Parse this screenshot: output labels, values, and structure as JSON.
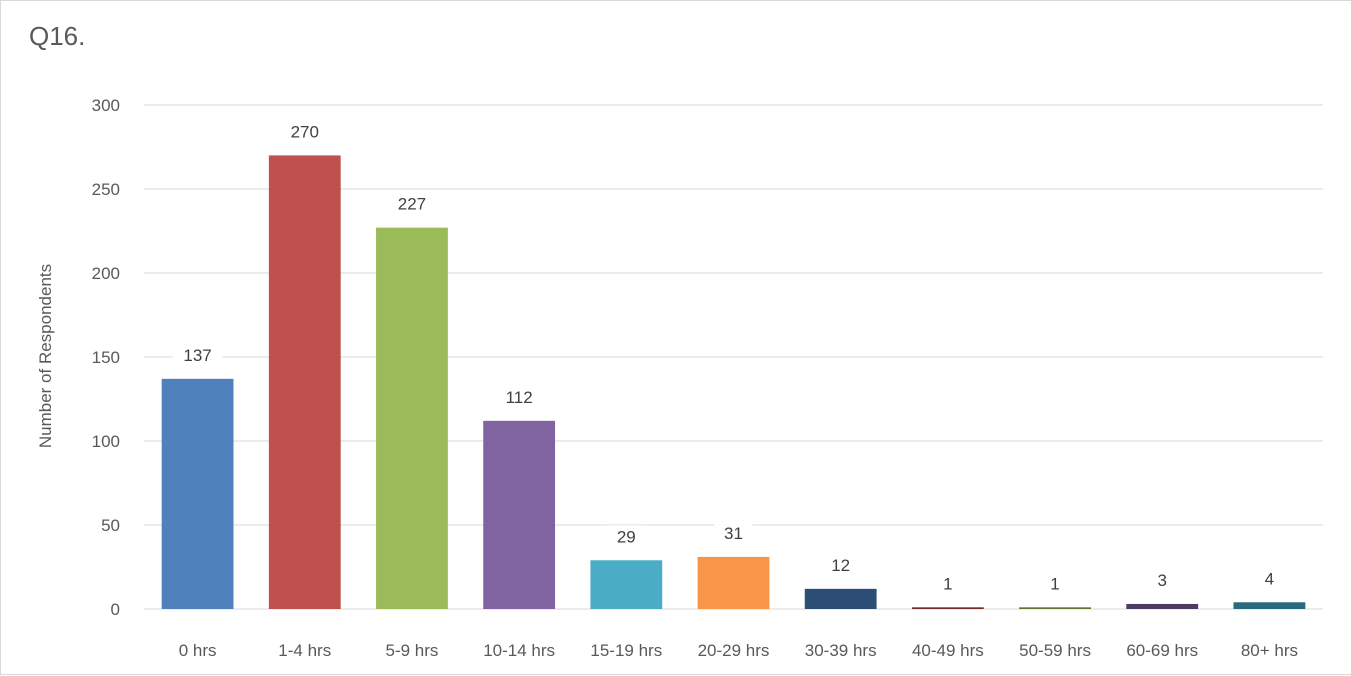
{
  "chart_data": {
    "type": "bar",
    "title": "Q16.",
    "ylabel": "Number of Respondents",
    "xlabel": "",
    "ylim": [
      0,
      300
    ],
    "yticks": [
      0,
      50,
      100,
      150,
      200,
      250,
      300
    ],
    "grid": true,
    "legend": "none",
    "categories": [
      "0 hrs",
      "1-4 hrs",
      "5-9 hrs",
      "10-14 hrs",
      "15-19 hrs",
      "20-29 hrs",
      "30-39 hrs",
      "40-49 hrs",
      "50-59 hrs",
      "60-69 hrs",
      "80+ hrs"
    ],
    "values": [
      137,
      270,
      227,
      112,
      29,
      31,
      12,
      1,
      1,
      3,
      4
    ],
    "data_labels": [
      "137",
      "270",
      "227",
      "112",
      "29",
      "31",
      "12",
      "1",
      "1",
      "3",
      "4"
    ],
    "colors": [
      "#4f81bd",
      "#c0504d",
      "#9bbb59",
      "#8064a2",
      "#4bacc6",
      "#f79646",
      "#2c4d75",
      "#772c2a",
      "#5f7530",
      "#4d3b62",
      "#276a7c"
    ],
    "gridline_color": "#d9d9d9",
    "label_bg_color": "#ffffff"
  }
}
